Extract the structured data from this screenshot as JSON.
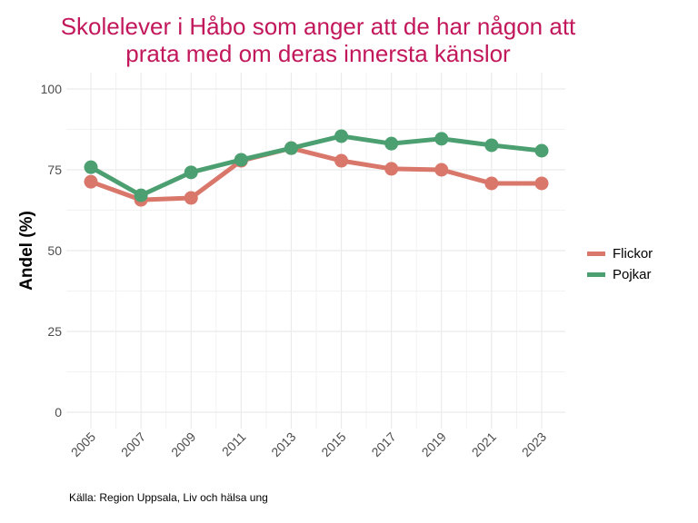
{
  "chart_data": {
    "type": "line",
    "title": "Skolelever i Håbo som anger att de har någon att prata med om deras innersta känslor",
    "title_lines": [
      "Skolelever i Håbo som anger att de har någon att",
      "prata med om deras innersta känslor"
    ],
    "xlabel": "",
    "ylabel": "Andel (%)",
    "x": [
      "2005",
      "2007",
      "2009",
      "2011",
      "2013",
      "2015",
      "2017",
      "2019",
      "2021",
      "2023"
    ],
    "ylim": [
      0,
      100
    ],
    "yticks": [
      0,
      25,
      50,
      75,
      100
    ],
    "grid": true,
    "legend_position": "right",
    "series": [
      {
        "name": "Flickor",
        "color": "#d9776b",
        "values": [
          71.3,
          65.7,
          66.3,
          77.8,
          81.7,
          77.8,
          75.3,
          75.0,
          70.8,
          70.8
        ]
      },
      {
        "name": "Pojkar",
        "color": "#4c9f70",
        "values": [
          75.8,
          67.1,
          74.2,
          78.1,
          81.7,
          85.4,
          83.1,
          84.6,
          82.6,
          80.9
        ]
      }
    ],
    "source": "Källa: Region Uppsala, Liv och hälsa ung"
  }
}
